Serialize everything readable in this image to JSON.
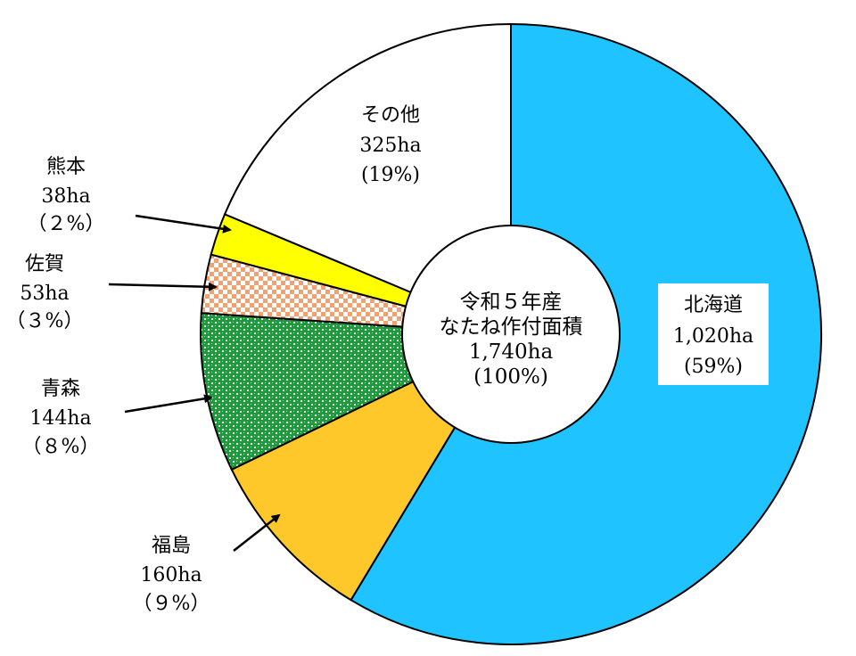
{
  "chart_data": {
    "type": "pie",
    "donut": true,
    "center": {
      "line1": "令和５年産",
      "line2": "なたね作付面積",
      "total": "1,740ha",
      "percent": "(100%)"
    },
    "slices": [
      {
        "name": "北海道",
        "value": 1020,
        "value_label": "1,020ha",
        "percent_label": "(59%)",
        "color": "#1ec3ff",
        "pattern": "solid"
      },
      {
        "name": "福島",
        "value": 160,
        "value_label": "160ha",
        "percent_label": "（９%）",
        "color": "#ffc82a",
        "pattern": "solid"
      },
      {
        "name": "青森",
        "value": 144,
        "value_label": "144ha",
        "percent_label": "（８%）",
        "color": "#1e9a3c",
        "pattern": "dots"
      },
      {
        "name": "佐賀",
        "value": 53,
        "value_label": "53ha",
        "percent_label": "（３%）",
        "color": "#f3a070",
        "pattern": "checker"
      },
      {
        "name": "熊本",
        "value": 38,
        "value_label": "38ha",
        "percent_label": "（２%）",
        "color": "#ffff00",
        "pattern": "solid"
      },
      {
        "name": "その他",
        "value": 325,
        "value_label": "325ha",
        "percent_label": "(19%)",
        "color": "#ffffff",
        "pattern": "solid"
      }
    ],
    "start": "top",
    "direction": "clockwise"
  }
}
